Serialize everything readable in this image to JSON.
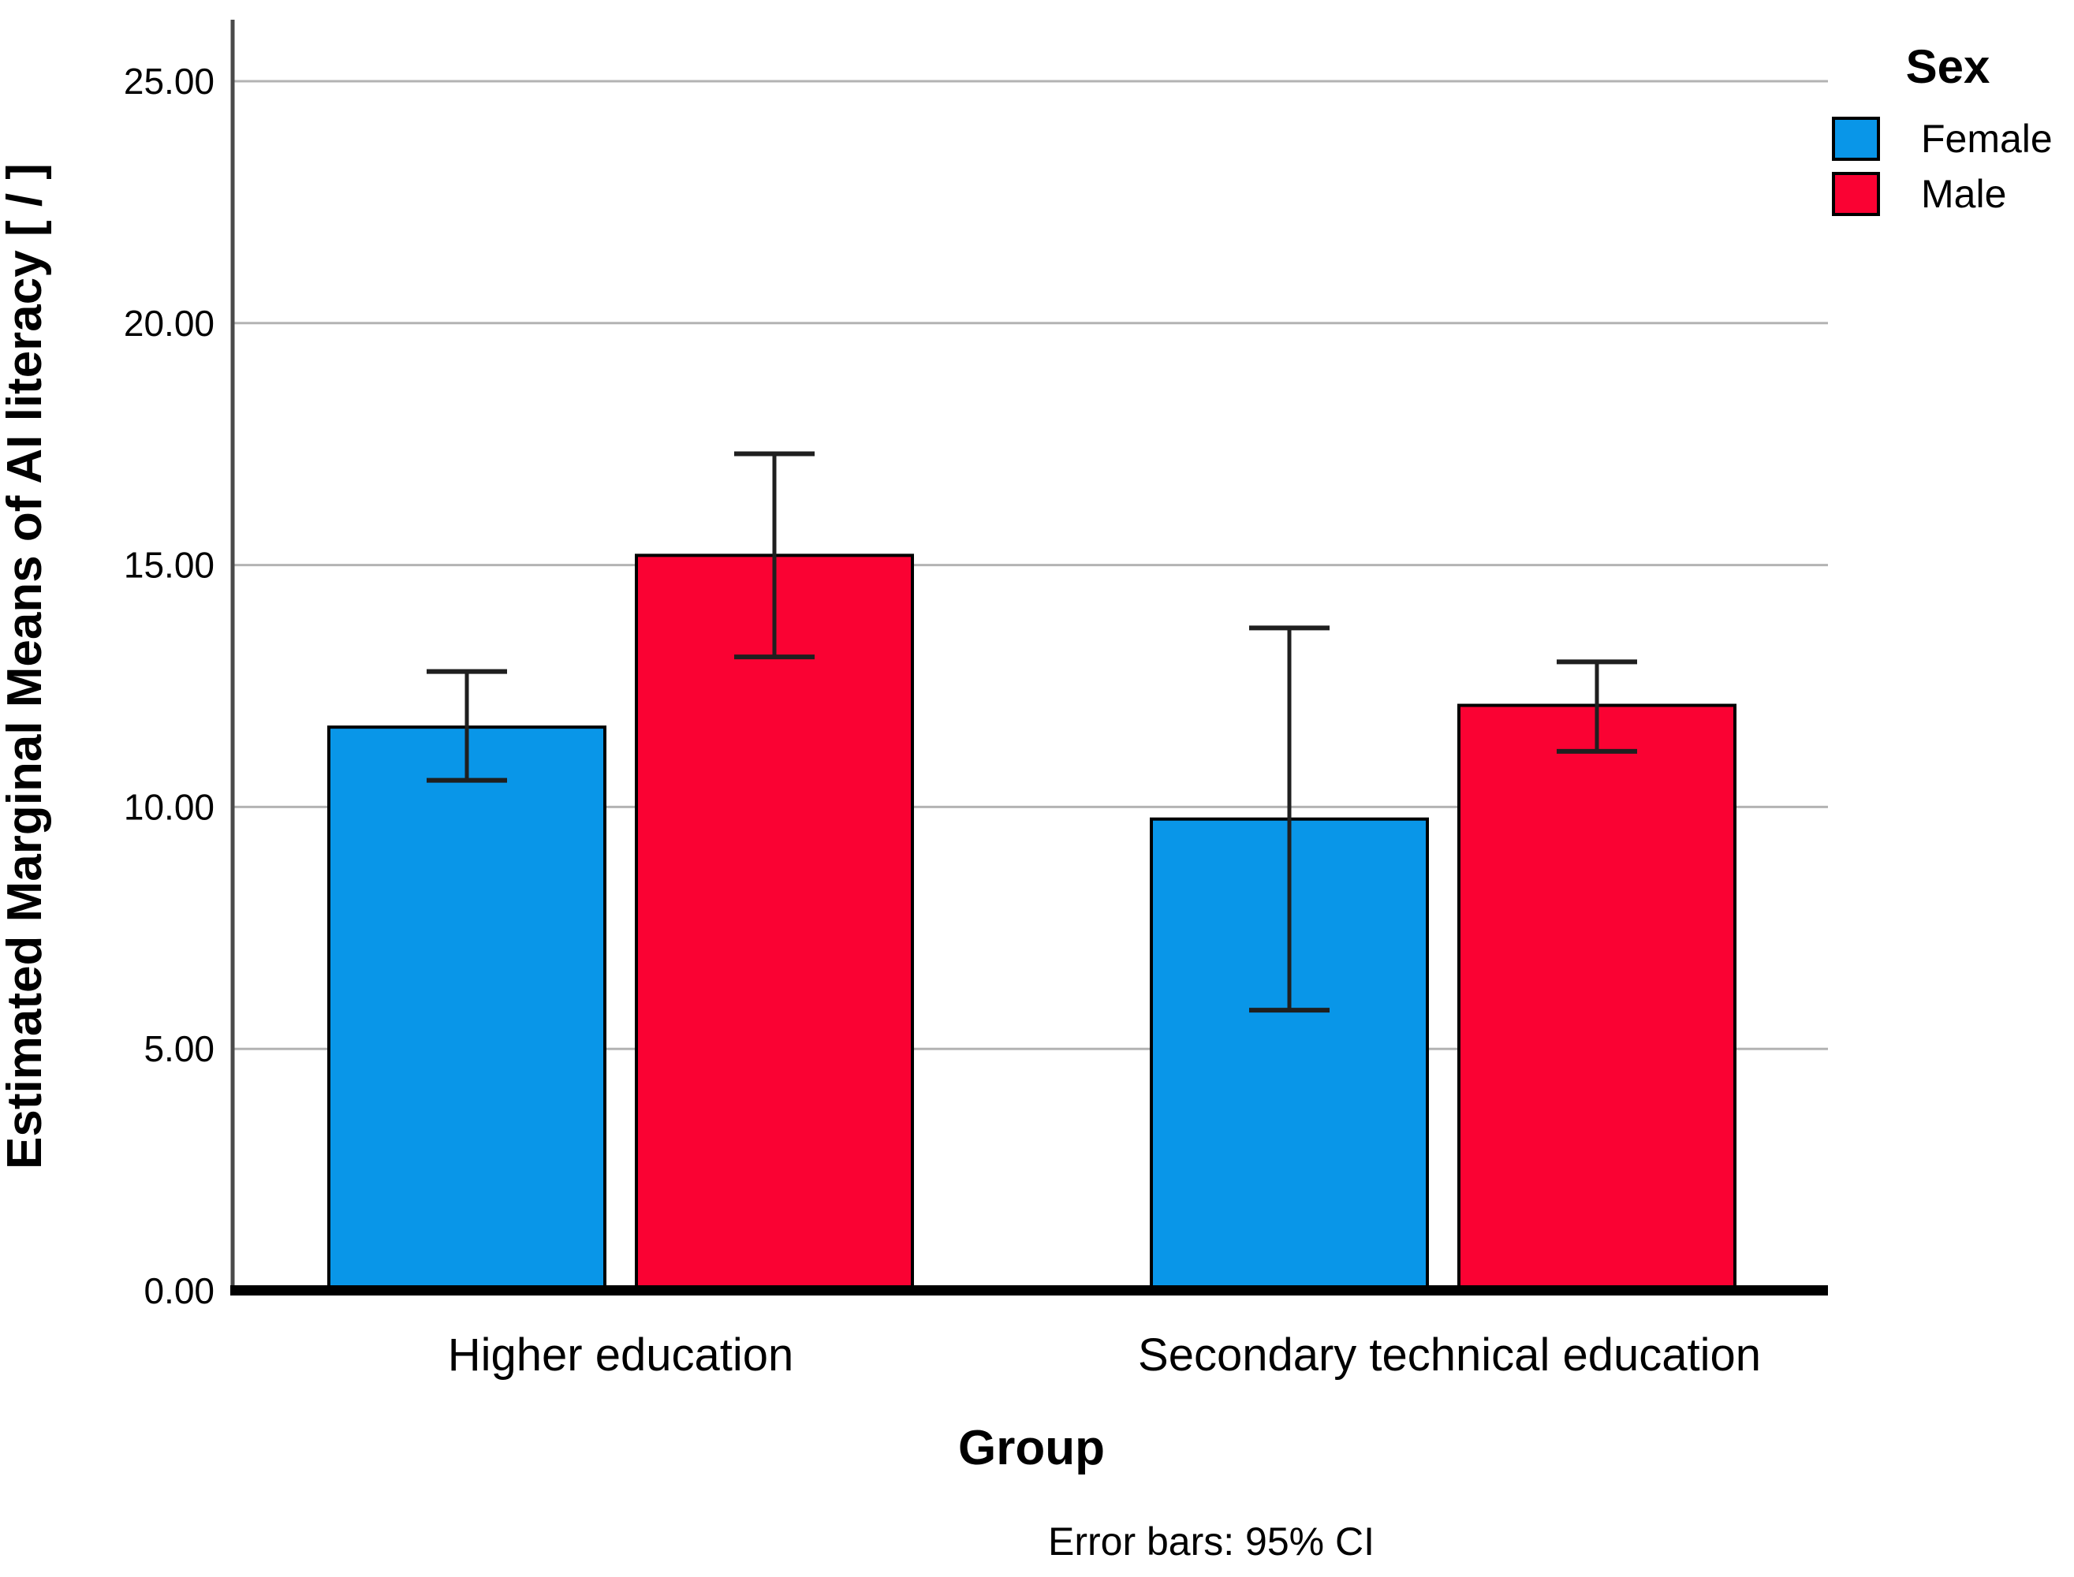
{
  "chart_data": {
    "type": "bar",
    "title": "",
    "xlabel": "Group",
    "ylabel": "Estimated Marginal Means of AI literacy [ / ]",
    "caption": "Error bars: 95% CI",
    "legend_title": "Sex",
    "legend_position": "top-right",
    "grid": "horizontal",
    "categories": [
      "Higher education",
      "Secondary technical education"
    ],
    "series": [
      {
        "name": "Female",
        "color": "#0996E8",
        "values": [
          11.65,
          9.75
        ],
        "ci_low": [
          10.55,
          5.8
        ],
        "ci_high": [
          12.8,
          13.7
        ]
      },
      {
        "name": "Male",
        "color": "#FA0233",
        "values": [
          15.2,
          12.1
        ],
        "ci_low": [
          13.1,
          11.15
        ],
        "ci_high": [
          17.3,
          13.0
        ]
      }
    ],
    "ylim": [
      0,
      25
    ],
    "yticks": [
      0,
      5,
      10,
      15,
      20,
      25
    ],
    "ytick_labels": [
      "0.00",
      "5.00",
      "10.00",
      "15.00",
      "20.00",
      "25.00"
    ],
    "error_bar_type": "95% CI",
    "style": {
      "gridline_color": "#B3B3B3",
      "axis_line_color": "#4A4A4A",
      "baseline_color": "#000000",
      "bar_border_color": "#000000",
      "error_bar_color": "#1F1F1F",
      "text_color": "#000000"
    }
  }
}
